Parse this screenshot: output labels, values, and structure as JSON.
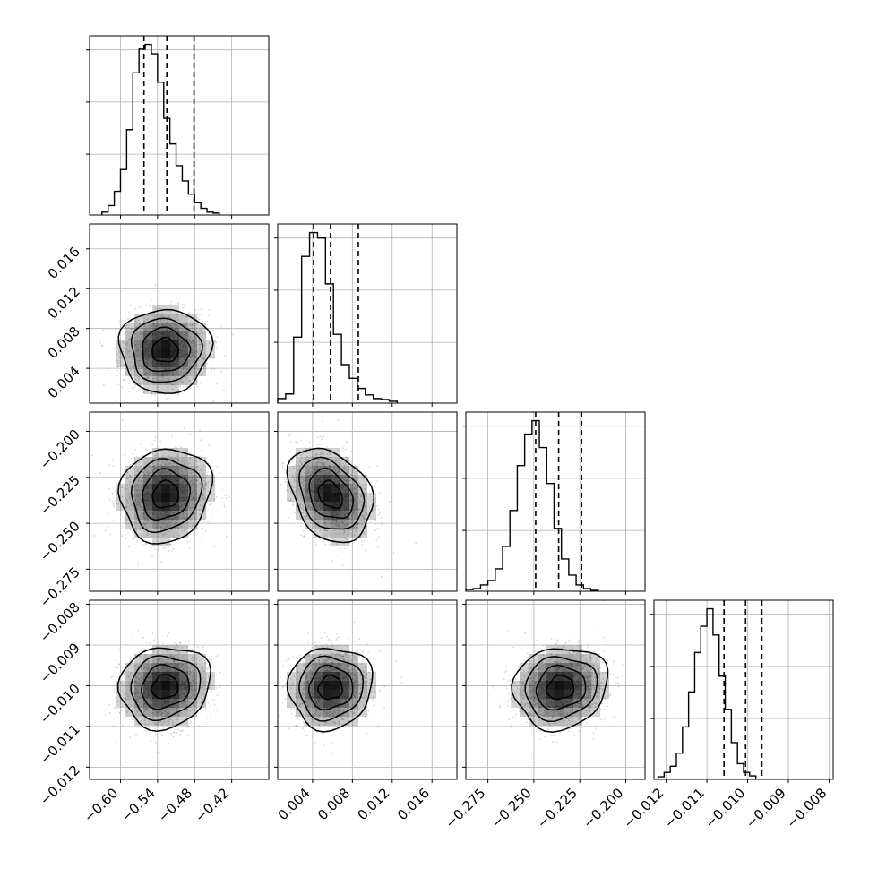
{
  "chart_data": {
    "type": "corner",
    "grid": true,
    "colors": {
      "line": "#000000",
      "grid": "#b0b0b0",
      "points": "#8c8c8c",
      "density": "#000000"
    },
    "parameters": [
      {
        "range": [
          -0.65,
          -0.36
        ],
        "ticks": [
          -0.6,
          -0.54,
          -0.48,
          -0.42
        ],
        "tick_labels": [
          "−0.60",
          "−0.54",
          "−0.48",
          "−0.42"
        ],
        "median": -0.525,
        "q16": -0.562,
        "q84": -0.481,
        "sigma": 0.035
      },
      {
        "range": [
          0.0005,
          0.0185
        ],
        "ticks": [
          0.004,
          0.008,
          0.012,
          0.016
        ],
        "tick_labels": [
          "0.004",
          "0.008",
          "0.012",
          "0.016"
        ],
        "median": 0.0058,
        "q16": 0.0041,
        "q84": 0.0086,
        "sigma": 0.002
      },
      {
        "range": [
          -0.287,
          -0.1895
        ],
        "ticks": [
          -0.275,
          -0.25,
          -0.225,
          -0.2
        ],
        "tick_labels": [
          "−0.275",
          "−0.250",
          "−0.225",
          "−0.200"
        ],
        "median": -0.2365,
        "q16": -0.249,
        "q84": -0.224,
        "sigma": 0.0122
      },
      {
        "range": [
          -0.0123,
          -0.0079
        ],
        "ticks": [
          -0.012,
          -0.011,
          -0.01,
          -0.009,
          -0.008
        ],
        "tick_labels": [
          "−0.012",
          "−0.011",
          "−0.010",
          "−0.009",
          "−0.008"
        ],
        "median": -0.01005,
        "q16": -0.01058,
        "q84": -0.00965,
        "sigma": 0.00048
      }
    ],
    "histograms": [
      {
        "param": 0,
        "bin_start": -0.63,
        "bin_width": 0.01,
        "counts": [
          3,
          10,
          25,
          48,
          90,
          150,
          175,
          180,
          170,
          140,
          102,
          75,
          52,
          36,
          22,
          13,
          7,
          3,
          2
        ]
      },
      {
        "param": 1,
        "bin_start": 0.0005,
        "bin_width": 0.0008,
        "counts": [
          5,
          10,
          72,
          160,
          186,
          180,
          130,
          75,
          42,
          27,
          16,
          9,
          5,
          4,
          2
        ]
      },
      {
        "param": 2,
        "bin_start": -0.287,
        "bin_width": 0.004,
        "counts": [
          2,
          3,
          7,
          12,
          25,
          50,
          90,
          140,
          175,
          190,
          160,
          120,
          70,
          36,
          18,
          7,
          3,
          1
        ]
      },
      {
        "param": 3,
        "bin_start": -0.0122,
        "bin_width": 0.00015,
        "counts": [
          3,
          8,
          15,
          30,
          60,
          100,
          145,
          175,
          195,
          165,
          118,
          80,
          42,
          18,
          8,
          4
        ]
      }
    ],
    "pairs": [
      {
        "x": 0,
        "y": 1,
        "x_center": -0.528,
        "y_center": 0.0058,
        "x_sigma": 0.035,
        "y_sigma": 0.002,
        "rho": 0.0
      },
      {
        "x": 0,
        "y": 2,
        "x_center": -0.527,
        "y_center": -0.2345,
        "x_sigma": 0.035,
        "y_sigma": 0.0122,
        "rho": 0.1
      },
      {
        "x": 1,
        "y": 2,
        "x_center": 0.0058,
        "y_center": -0.2345,
        "x_sigma": 0.002,
        "y_sigma": 0.0122,
        "rho": -0.3
      },
      {
        "x": 0,
        "y": 3,
        "x_center": -0.528,
        "y_center": -0.01003,
        "x_sigma": 0.035,
        "y_sigma": 0.00048,
        "rho": 0.1
      },
      {
        "x": 1,
        "y": 3,
        "x_center": 0.0058,
        "y_center": -0.01005,
        "x_sigma": 0.002,
        "y_sigma": 0.00048,
        "rho": 0.05
      },
      {
        "x": 2,
        "y": 3,
        "x_center": -0.2355,
        "y_center": -0.01005,
        "x_sigma": 0.0122,
        "y_sigma": 0.00048,
        "rho": 0.1
      }
    ]
  }
}
